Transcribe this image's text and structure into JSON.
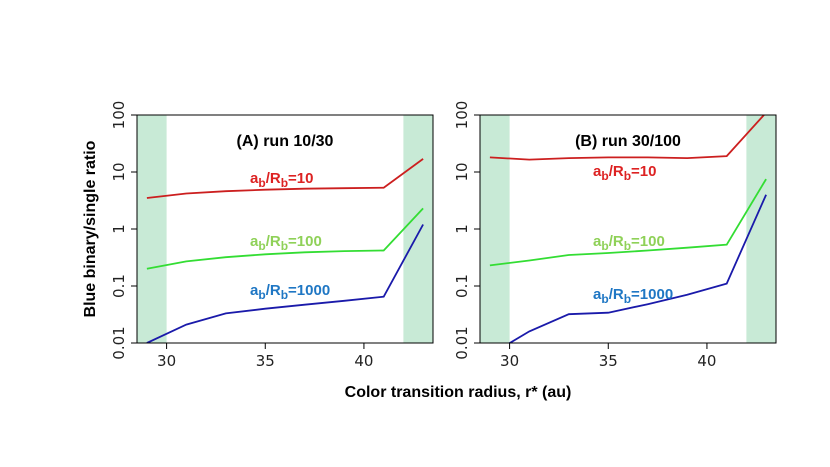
{
  "chart_data": [
    {
      "type": "line",
      "panel_label": "(A) run 10/30",
      "ylabel": "Blue binary/single ratio",
      "xlabel": "Color transition radius, r* (au)",
      "xlim": [
        28.5,
        43.5
      ],
      "ylim": [
        0.01,
        100
      ],
      "yscale": "log",
      "xticks": [
        30,
        35,
        40
      ],
      "yticks": [
        0.01,
        0.1,
        1,
        10,
        100
      ],
      "ytick_labels": [
        "0.01",
        "0.1",
        "1",
        "10",
        "100"
      ],
      "shaded_x_ranges": [
        [
          28.5,
          30
        ],
        [
          42,
          43.5
        ]
      ],
      "shade_color": "#c8ead6",
      "series": [
        {
          "name": "ab/Rb=10",
          "sub_a": "b",
          "sub_r": "b",
          "ratio_value": "=10",
          "color": "#cc1f1f",
          "label_color": "#dd2222",
          "x": [
            29,
            31,
            33,
            35,
            37,
            39,
            41,
            43
          ],
          "y": [
            3.5,
            4.2,
            4.6,
            4.9,
            5.1,
            5.2,
            5.3,
            17
          ]
        },
        {
          "name": "ab/Rb=100",
          "sub_a": "b",
          "sub_r": "b",
          "ratio_value": "=100",
          "color": "#33dd33",
          "label_color": "#8fd158",
          "x": [
            29,
            31,
            33,
            35,
            37,
            39,
            41,
            43
          ],
          "y": [
            0.2,
            0.27,
            0.32,
            0.36,
            0.39,
            0.41,
            0.42,
            2.3
          ]
        },
        {
          "name": "ab/Rb=1000",
          "sub_a": "b",
          "sub_r": "b",
          "ratio_value": "=1000",
          "color": "#1a1aaa",
          "label_color": "#1f77c4",
          "x": [
            29,
            31,
            33,
            35,
            37,
            39,
            41,
            43
          ],
          "y": [
            0.01,
            0.021,
            0.033,
            0.04,
            0.047,
            0.055,
            0.065,
            1.2
          ]
        }
      ]
    },
    {
      "type": "line",
      "panel_label": "(B) run 30/100",
      "xlim": [
        28.5,
        43.5
      ],
      "ylim": [
        0.01,
        100
      ],
      "yscale": "log",
      "xticks": [
        30,
        35,
        40
      ],
      "yticks": [
        0.01,
        0.1,
        1,
        10,
        100
      ],
      "ytick_labels": [
        "0.01",
        "0.1",
        "1",
        "10",
        "100"
      ],
      "shaded_x_ranges": [
        [
          28.5,
          30
        ],
        [
          42,
          43.5
        ]
      ],
      "shade_color": "#c8ead6",
      "series": [
        {
          "name": "ab/Rb=10",
          "sub_a": "b",
          "sub_r": "b",
          "ratio_value": "=10",
          "color": "#cc1f1f",
          "label_color": "#dd2222",
          "x": [
            29,
            31,
            33,
            35,
            37,
            39,
            41,
            43
          ],
          "y": [
            18,
            16.5,
            17.5,
            18,
            18,
            17.5,
            19,
            110
          ]
        },
        {
          "name": "ab/Rb=100",
          "sub_a": "b",
          "sub_r": "b",
          "ratio_value": "=100",
          "color": "#33dd33",
          "label_color": "#8fd158",
          "x": [
            29,
            31,
            33,
            35,
            37,
            39,
            41,
            43
          ],
          "y": [
            0.23,
            0.28,
            0.35,
            0.38,
            0.42,
            0.47,
            0.53,
            7.5
          ]
        },
        {
          "name": "ab/Rb=1000",
          "sub_a": "b",
          "sub_r": "b",
          "ratio_value": "=1000",
          "color": "#1a1aaa",
          "label_color": "#1f77c4",
          "x": [
            29.9,
            31,
            33,
            35,
            37,
            39,
            41,
            43
          ],
          "y": [
            0.0095,
            0.016,
            0.032,
            0.034,
            0.048,
            0.07,
            0.11,
            4
          ]
        }
      ]
    }
  ]
}
